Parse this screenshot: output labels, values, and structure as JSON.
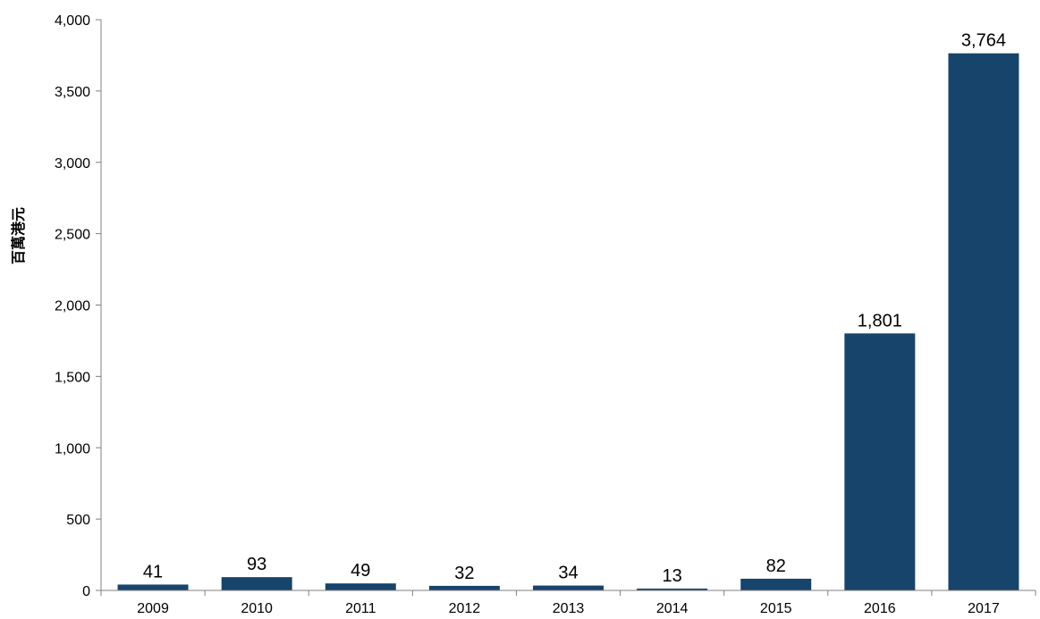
{
  "chart_data": {
    "type": "bar",
    "title": "",
    "xlabel": "",
    "ylabel": "百萬港元",
    "categories": [
      "2009",
      "2010",
      "2011",
      "2012",
      "2013",
      "2014",
      "2015",
      "2016",
      "2017"
    ],
    "values": [
      41,
      93,
      49,
      32,
      34,
      13,
      82,
      1801,
      3764
    ],
    "data_labels": [
      "41",
      "93",
      "49",
      "32",
      "34",
      "13",
      "82",
      "1,801",
      "3,764"
    ],
    "ylim": [
      0,
      4000
    ],
    "yticks": [
      0,
      500,
      1000,
      1500,
      2000,
      2500,
      3000,
      3500,
      4000
    ],
    "ytick_labels": [
      "0",
      "500",
      "1,000",
      "1,500",
      "2,000",
      "2,500",
      "3,000",
      "3,500",
      "4,000"
    ],
    "grid": false,
    "legend": "none",
    "bar_color": "#17446B",
    "axis_color": "#808080"
  }
}
